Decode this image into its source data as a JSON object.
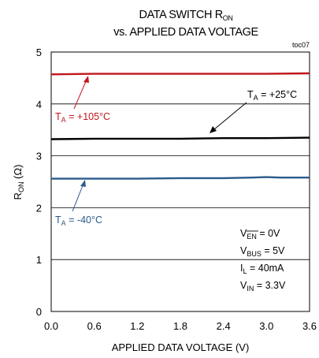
{
  "chart_data": {
    "type": "line",
    "title": {
      "line1_main": "DATA SWITCH R",
      "line1_sub": "ON",
      "line2": "vs. APPLIED DATA VOLTAGE"
    },
    "figure_id": "toc07",
    "xlabel": "APPLIED DATA VOLTAGE (V)",
    "ylabel": {
      "main": "R",
      "sub": "ON",
      "rest": " (Ω)"
    },
    "xlim": [
      0,
      3.6
    ],
    "ylim": [
      0,
      5
    ],
    "xticks": [
      0.0,
      0.6,
      1.2,
      1.8,
      2.4,
      3.0,
      3.6
    ],
    "xtick_labels": [
      "0.0",
      "0.6",
      "1.2",
      "1.8",
      "2.4",
      "3.0",
      "3.6"
    ],
    "yticks": [
      0,
      1,
      2,
      3,
      4,
      5
    ],
    "ytick_labels": [
      "0",
      "1",
      "2",
      "3",
      "4",
      "5"
    ],
    "grid": "horizontal",
    "series": [
      {
        "name": "TA = +105°C",
        "color": "#c0161c",
        "x": [
          0,
          0.6,
          1.2,
          1.8,
          2.4,
          3.0,
          3.6
        ],
        "y": [
          4.57,
          4.58,
          4.58,
          4.58,
          4.58,
          4.58,
          4.59
        ]
      },
      {
        "name": "TA = +25°C",
        "color": "#000000",
        "x": [
          0,
          0.6,
          1.2,
          1.8,
          2.4,
          3.0,
          3.6
        ],
        "y": [
          3.32,
          3.33,
          3.33,
          3.33,
          3.34,
          3.34,
          3.35
        ]
      },
      {
        "name": "TA = -40°C",
        "color": "#2b5b8c",
        "x": [
          0,
          0.6,
          1.2,
          1.8,
          2.4,
          2.8,
          3.0,
          3.2,
          3.6
        ],
        "y": [
          2.56,
          2.56,
          2.56,
          2.57,
          2.57,
          2.58,
          2.59,
          2.58,
          2.58
        ]
      }
    ],
    "annotations": {
      "hot": {
        "pre": "T",
        "sub": "A",
        "post": " = +105°C",
        "color": "#c0161c"
      },
      "room": {
        "pre": "T",
        "sub": "A",
        "post": " = +25°C",
        "color": "#000000"
      },
      "cold": {
        "pre": "T",
        "sub": "A",
        "post": " = -40°C",
        "color": "#2b5b8c"
      }
    },
    "conditions": [
      {
        "pre": "V",
        "sub": "EN",
        "post": " = 0V",
        "overline": true
      },
      {
        "pre": "V",
        "sub": "BUS",
        "post": " = 5V",
        "overline": false
      },
      {
        "pre": "I",
        "sub": "L",
        "post": " = 40mA",
        "overline": false
      },
      {
        "pre": "V",
        "sub": "IN",
        "post": " = 3.3V",
        "overline": false
      }
    ]
  }
}
